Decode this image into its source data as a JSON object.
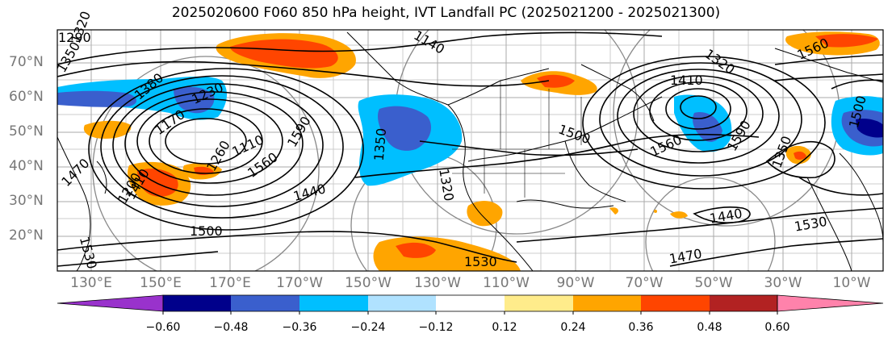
{
  "title": "2025020600 F060 850 hPa height, IVT Landfall PC (2025021200 - 2025021300)",
  "lat_labels": [
    "70°N",
    "60°N",
    "50°N",
    "40°N",
    "30°N",
    "20°N"
  ],
  "lon_labels": [
    "130°E",
    "150°E",
    "170°E",
    "170°W",
    "150°W",
    "130°W",
    "110°W",
    "90°W",
    "70°W",
    "50°W",
    "30°W",
    "10°W"
  ],
  "contour_labels": [
    "1350",
    "1320",
    "1290",
    "1230",
    "1170",
    "1110",
    "1380",
    "1410",
    "1440",
    "1470",
    "1500",
    "1530",
    "1560",
    "1590",
    "1260",
    "1200",
    "1140",
    "1320",
    "1350",
    "1530",
    "1500",
    "1560",
    "1410",
    "1470",
    "1440",
    "1530",
    "1590",
    "1560",
    "1320",
    "1350",
    "1500"
  ],
  "colorbar": {
    "ticks": [
      "−0.60",
      "−0.48",
      "−0.36",
      "−0.24",
      "−0.12",
      "0.12",
      "0.24",
      "0.36",
      "0.48",
      "0.60"
    ],
    "colors": [
      "#9932cc",
      "#00008b",
      "#3a5fcd",
      "#00bfff",
      "#b0e2ff",
      "#ffffff",
      "#ffec8b",
      "#ffa500",
      "#ff4500",
      "#b22222",
      "#ff82ab"
    ]
  }
}
